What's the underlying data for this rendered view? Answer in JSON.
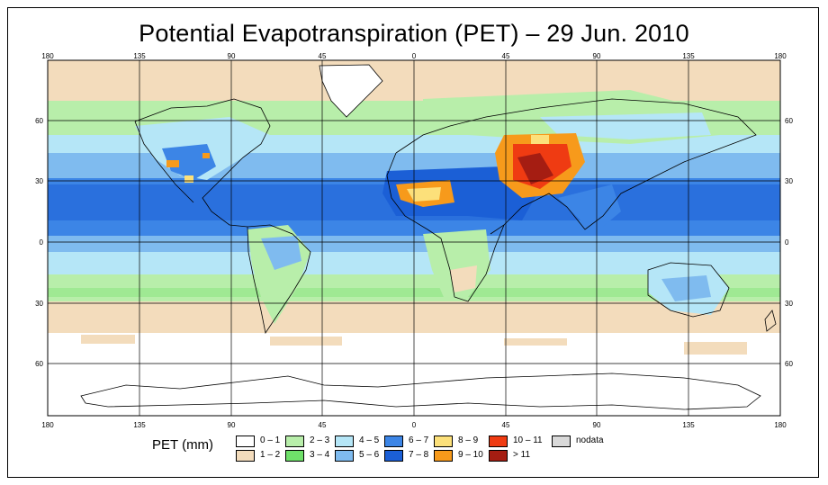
{
  "title": "Potential Evapotranspiration (PET) – 29 Jun. 2010",
  "axes": {
    "lon_ticks": [
      "180",
      "135",
      "90",
      "45",
      "0",
      "45",
      "90",
      "135",
      "180"
    ],
    "lat_ticks": [
      "60",
      "30",
      "0",
      "30",
      "60"
    ]
  },
  "legend": {
    "title": "PET (mm)",
    "classes": [
      {
        "label": "0 – 1",
        "color": "#ffffff"
      },
      {
        "label": "1 – 2",
        "color": "#f3dcbc"
      },
      {
        "label": "2 – 3",
        "color": "#b8eeaa"
      },
      {
        "label": "3 – 4",
        "color": "#6fe06a"
      },
      {
        "label": "4 – 5",
        "color": "#b5e6f7"
      },
      {
        "label": "5 – 6",
        "color": "#7fbbef"
      },
      {
        "label": "6 – 7",
        "color": "#3c85e6"
      },
      {
        "label": "7 – 8",
        "color": "#1b5fd6"
      },
      {
        "label": "8 – 9",
        "color": "#fce07a"
      },
      {
        "label": "9 – 10",
        "color": "#f79a1b"
      },
      {
        "label": "10 – 11",
        "color": "#ef3b12"
      },
      {
        "label": "> 11",
        "color": "#a51d12"
      },
      {
        "label": "nodata",
        "color": "#d9d9d9"
      }
    ]
  }
}
